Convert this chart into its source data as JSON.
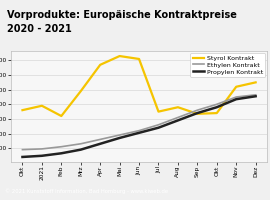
{
  "title_line1": "Vorprodukte: Europäische Kontraktpreise",
  "title_line2": "2020 - 2021",
  "title_color": "#000000",
  "title_bg": "#f5c400",
  "footer": "© 2021 Kunststoff Information, Bad Homburg - www.kiweb.de",
  "x_labels": [
    "Okt",
    "2021",
    "Feb",
    "Mrz",
    "Apr",
    "Mai",
    "Jun",
    "Jul",
    "Aug",
    "Sep",
    "Okt",
    "Nov",
    "Dez"
  ],
  "styrol": [
    560,
    590,
    520,
    690,
    870,
    930,
    910,
    550,
    580,
    535,
    540,
    720,
    750
  ],
  "ethylen": [
    290,
    295,
    310,
    330,
    360,
    390,
    420,
    460,
    510,
    560,
    600,
    650,
    665
  ],
  "propylen": [
    240,
    248,
    265,
    290,
    330,
    370,
    405,
    440,
    490,
    540,
    580,
    635,
    655
  ],
  "styrol_color": "#f5c400",
  "ethylen_color": "#999999",
  "propylen_color": "#222222",
  "bg_color": "#f0f0f0",
  "plot_bg": "#f7f7f7",
  "plot_border": "#bbbbbb",
  "legend_labels": [
    "Styrol Kontrakt",
    "Ethylen Kontrakt",
    "Propylen Kontrakt"
  ],
  "footer_bg": "#7a7a7a",
  "footer_color": "#ffffff",
  "lw_styrol": 1.6,
  "lw_ethylen": 1.2,
  "lw_propylen": 1.8,
  "title_fontsize": 7.0,
  "tick_fontsize": 4.2,
  "legend_fontsize": 4.5,
  "footer_fontsize": 3.8
}
